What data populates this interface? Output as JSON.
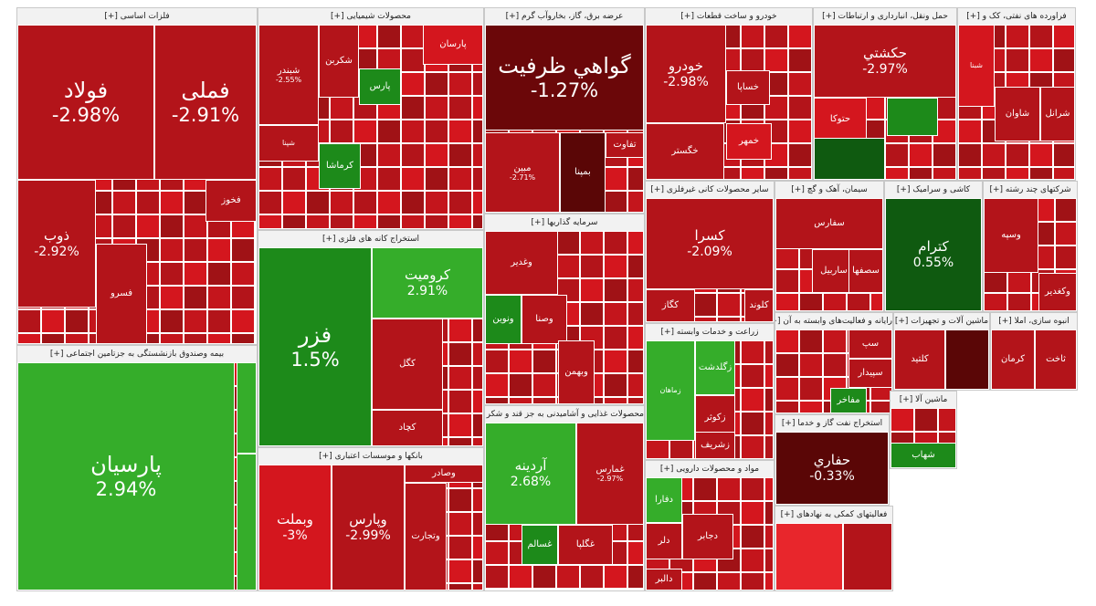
{
  "chart_data": {
    "type": "treemap",
    "title": "",
    "colors": {
      "deep_red": "#5a0606",
      "dark_red": "#8e0b0d",
      "red": "#b3141a",
      "bright_red": "#d4161e",
      "vivid_red": "#e8262c",
      "deep_green": "#0f5a10",
      "green": "#1d8a1a",
      "light_green": "#35ad2a",
      "header_bg": "#f2f2f2",
      "border": "#ffffff"
    },
    "sectors": [
      {
        "name": "فلزات اساسی [+]",
        "tiles": [
          {
            "name": "فولاد",
            "change": "-2.98%",
            "color": "#b3141a"
          },
          {
            "name": "فملی",
            "change": "-2.91%",
            "color": "#b3141a"
          },
          {
            "name": "ذوب",
            "change": "-2.92%",
            "color": "#b3141a"
          },
          {
            "name": "فخوز",
            "change": "",
            "color": "#b3141a"
          },
          {
            "name": "فسرو",
            "change": "",
            "color": "#b3141a"
          }
        ]
      },
      {
        "name": "محصولات شیمیایی [+]",
        "tiles": [
          {
            "name": "شبندر",
            "change": "-2.55%",
            "color": "#b3141a"
          },
          {
            "name": "پارسان",
            "change": "",
            "color": "#d4161e"
          },
          {
            "name": "شکربن",
            "change": "",
            "color": "#b3141a"
          },
          {
            "name": "پارس",
            "change": "",
            "color": "#1d8a1a"
          },
          {
            "name": "شپنا",
            "change": "",
            "color": "#b3141a"
          },
          {
            "name": "کرماشا",
            "change": "",
            "color": "#1d8a1a"
          }
        ]
      },
      {
        "name": "عرضه برق، گاز، بخاروآب گرم [+]",
        "tiles": [
          {
            "name": "گواهي ظرفيت",
            "change": "-1.27%",
            "color": "#6b0709"
          },
          {
            "name": "مبین",
            "change": "-2.71%",
            "color": "#b3141a"
          },
          {
            "name": "بمپنا",
            "change": "",
            "color": "#5a0606"
          },
          {
            "name": "تفاوت",
            "change": "",
            "color": "#b3141a"
          }
        ]
      },
      {
        "name": "خودرو و ساخت قطعات [+]",
        "tiles": [
          {
            "name": "خودرو",
            "change": "-2.98%",
            "color": "#b3141a"
          },
          {
            "name": "خساپا",
            "change": "",
            "color": "#b3141a"
          },
          {
            "name": "خگستر",
            "change": "",
            "color": "#b3141a"
          },
          {
            "name": "خمهر",
            "change": "",
            "color": "#d4161e"
          }
        ]
      },
      {
        "name": "حمل ونقل، انبارداری و ارتباطات [+]",
        "tiles": [
          {
            "name": "حکشتي",
            "change": "-2.97%",
            "color": "#b3141a"
          },
          {
            "name": "حتوکا",
            "change": "",
            "color": "#d4161e"
          },
          {
            "name": "",
            "change": "",
            "color": "#0f5a10"
          },
          {
            "name": "",
            "change": "",
            "color": "#1d8a1a"
          }
        ]
      },
      {
        "name": "فراورده های نفتی، کک و [+]",
        "tiles": [
          {
            "name": "شبنا",
            "change": "",
            "color": "#d4161e"
          },
          {
            "name": "شاوان",
            "change": "",
            "color": "#b3141a"
          },
          {
            "name": "شرانل",
            "change": "",
            "color": "#b3141a"
          }
        ]
      },
      {
        "name": "استخراج کانه های فلزی [+]",
        "tiles": [
          {
            "name": "فزر",
            "change": "1.5%",
            "color": "#1d8a1a"
          },
          {
            "name": "کرومیت",
            "change": "2.91%",
            "color": "#35ad2a"
          },
          {
            "name": "کگل",
            "change": "",
            "color": "#b3141a"
          },
          {
            "name": "کچاد",
            "change": "",
            "color": "#b3141a"
          }
        ]
      },
      {
        "name": "سرمایه گذاریها [+]",
        "tiles": [
          {
            "name": "وغدیر",
            "change": "",
            "color": "#b3141a"
          },
          {
            "name": "ونوین",
            "change": "",
            "color": "#1d8a1a"
          },
          {
            "name": "وصنا",
            "change": "",
            "color": "#b3141a"
          },
          {
            "name": "وبهمن",
            "change": "",
            "color": "#b3141a"
          }
        ]
      },
      {
        "name": "سایر محصولات کانی غیرفلزی [+]",
        "tiles": [
          {
            "name": "کسرا",
            "change": "-2.09%",
            "color": "#b3141a"
          },
          {
            "name": "کلوند",
            "change": "",
            "color": "#b3141a"
          },
          {
            "name": "کگاز",
            "change": "",
            "color": "#b3141a"
          }
        ]
      },
      {
        "name": "سیمان، آهک و گچ [+]",
        "tiles": [
          {
            "name": "سفارس",
            "change": "",
            "color": "#b3141a"
          },
          {
            "name": "ساربیل",
            "change": "",
            "color": "#b3141a"
          },
          {
            "name": "سصفها",
            "change": "",
            "color": "#b3141a"
          }
        ]
      },
      {
        "name": "کاشی و سرامیک [+]",
        "tiles": [
          {
            "name": "کترام",
            "change": "0.55%",
            "color": "#0f5a10"
          }
        ]
      },
      {
        "name": "شرکتهای چند رشته [+]",
        "tiles": [
          {
            "name": "وسپه",
            "change": "",
            "color": "#b3141a"
          },
          {
            "name": "وکغدیر",
            "change": "",
            "color": "#b3141a"
          }
        ]
      },
      {
        "name": "بیمه وصندوق بازنشستگی به جزتامین اجتماعی [+]",
        "tiles": [
          {
            "name": "پارسيان",
            "change": "2.94%",
            "color": "#35ad2a"
          },
          {
            "name": "",
            "change": "",
            "color": "#35ad2a"
          },
          {
            "name": "",
            "change": "",
            "color": "#35ad2a"
          }
        ]
      },
      {
        "name": "بانکها و موسسات اعتباری [+]",
        "tiles": [
          {
            "name": "وبملت",
            "change": "-3%",
            "color": "#d4161e"
          },
          {
            "name": "وپارس",
            "change": "-2.99%",
            "color": "#b3141a"
          },
          {
            "name": "وتجارت",
            "change": "",
            "color": "#b3141a"
          },
          {
            "name": "وصادر",
            "change": "",
            "color": "#b3141a"
          }
        ]
      },
      {
        "name": "محصولات غذایی و آشامیدنی به جز قند و شکر [+]",
        "tiles": [
          {
            "name": "آردینه",
            "change": "2.68%",
            "color": "#35ad2a"
          },
          {
            "name": "غمارس",
            "change": "-2.97%",
            "color": "#b3141a"
          },
          {
            "name": "غگلپا",
            "change": "",
            "color": "#b3141a"
          },
          {
            "name": "غسالم",
            "change": "",
            "color": "#1d8a1a"
          }
        ]
      },
      {
        "name": "زراعت و خدمات وابسته [+]",
        "tiles": [
          {
            "name": "زماهان",
            "change": "",
            "color": "#35ad2a"
          },
          {
            "name": "زگلدشت",
            "change": "",
            "color": "#35ad2a"
          },
          {
            "name": "زکوثر",
            "change": "",
            "color": "#b3141a"
          },
          {
            "name": "زشریف",
            "change": "",
            "color": "#b3141a"
          }
        ]
      },
      {
        "name": "مواد و محصولات دارویی [+]",
        "tiles": [
          {
            "name": "دفارا",
            "change": "",
            "color": "#35ad2a"
          },
          {
            "name": "دجابر",
            "change": "",
            "color": "#b3141a"
          },
          {
            "name": "دلر",
            "change": "",
            "color": "#b3141a"
          },
          {
            "name": "دالبر",
            "change": "",
            "color": "#b3141a"
          }
        ]
      },
      {
        "name": "رایانه و فعالیت‌های وابسته به آن [+]",
        "tiles": [
          {
            "name": "سپ",
            "change": "",
            "color": "#b3141a"
          },
          {
            "name": "سپیدار",
            "change": "",
            "color": "#b3141a"
          },
          {
            "name": "مفاخر",
            "change": "",
            "color": "#1d8a1a"
          }
        ]
      },
      {
        "name": "ماشین آلات و تجهیزات [+]",
        "tiles": [
          {
            "name": "کلتید",
            "change": "",
            "color": "#b3141a"
          },
          {
            "name": "",
            "change": "",
            "color": "#5a0606"
          }
        ]
      },
      {
        "name": "انبوه سازی، املا [+]",
        "tiles": [
          {
            "name": "کرمان",
            "change": "",
            "color": "#b3141a"
          },
          {
            "name": "ثاخت",
            "change": "",
            "color": "#b3141a"
          }
        ]
      },
      {
        "name": "استخراج نفت گاز و خدما [+]",
        "tiles": [
          {
            "name": "حفاري",
            "change": "-0.33%",
            "color": "#5a0606"
          }
        ]
      },
      {
        "name": "ماشین آلا [+]",
        "tiles": [
          {
            "name": "شهاب",
            "change": "",
            "color": "#1d8a1a"
          }
        ]
      },
      {
        "name": "فعالیتهای کمکی به نهادهای [+]",
        "tiles": [
          {
            "name": "",
            "change": "",
            "color": "#e8262c"
          },
          {
            "name": "",
            "change": "",
            "color": "#b3141a"
          }
        ]
      }
    ]
  }
}
